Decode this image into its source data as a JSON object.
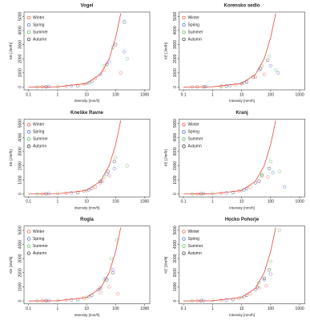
{
  "chart_data": [
    {
      "type": "scatter",
      "title": "Vogel",
      "x_label": "Intensity [mm/h]",
      "y_label": "KE [J/m²h]",
      "xscale": "log",
      "legend": "top-left",
      "xlim": [
        0.07,
        1500
      ],
      "ylim": [
        -200,
        5300
      ],
      "xticks": [
        0.1,
        1,
        10,
        100,
        1000
      ],
      "yticks": [
        0,
        1000,
        2000,
        3000,
        4000,
        5000
      ],
      "curve": {
        "color": "#e8493c",
        "x": [
          0.1,
          1,
          10,
          30,
          60,
          100,
          150
        ],
        "y": [
          1,
          15,
          250,
          900,
          2000,
          3500,
          5200
        ]
      },
      "series": [
        {
          "name": "Winter",
          "color": "#e8493c",
          "x": [
            0.3,
            2,
            8,
            20,
            40,
            150
          ],
          "values": [
            20,
            50,
            200,
            600,
            1200,
            1000
          ]
        },
        {
          "name": "Spring",
          "color": "#3a5fcd",
          "x": [
            0.5,
            3,
            12,
            30,
            60,
            200
          ],
          "values": [
            30,
            80,
            300,
            900,
            1800,
            2500
          ]
        },
        {
          "name": "Summer",
          "color": "#4caf50",
          "x": [
            0.2,
            1,
            10,
            40,
            80,
            250
          ],
          "values": [
            10,
            40,
            250,
            1500,
            2800,
            2000
          ]
        },
        {
          "name": "Autumn",
          "color": "#222222",
          "x": [
            0.4,
            5,
            15,
            50,
            100,
            200
          ],
          "values": [
            20,
            100,
            400,
            1600,
            3000,
            4600
          ]
        }
      ]
    },
    {
      "type": "scatter",
      "title": "Korensko sedlo",
      "x_label": "Intensity [mm/h]",
      "y_label": "KE [J/m²h]",
      "xscale": "log",
      "legend": "top-left",
      "xlim": [
        0.07,
        1500
      ],
      "ylim": [
        -200,
        5300
      ],
      "xticks": [
        0.1,
        1,
        10,
        100,
        1000
      ],
      "yticks": [
        0,
        1000,
        2000,
        3000,
        4000,
        5000
      ],
      "curve": {
        "color": "#e8493c",
        "x": [
          0.1,
          1,
          10,
          30,
          60,
          100,
          150
        ],
        "y": [
          1,
          15,
          250,
          900,
          2000,
          3500,
          5200
        ]
      },
      "series": [
        {
          "name": "Winter",
          "color": "#e8493c",
          "x": [
            0.3,
            2,
            6,
            15,
            30,
            60
          ],
          "values": [
            20,
            40,
            150,
            400,
            700,
            900
          ]
        },
        {
          "name": "Spring",
          "color": "#3a5fcd",
          "x": [
            0.6,
            4,
            15,
            40,
            100,
            180
          ],
          "values": [
            30,
            90,
            350,
            1200,
            1500,
            1000
          ]
        },
        {
          "name": "Summer",
          "color": "#4caf50",
          "x": [
            0.2,
            2,
            12,
            50,
            90,
            150
          ],
          "values": [
            10,
            60,
            300,
            1500,
            2200,
            1200
          ]
        },
        {
          "name": "Autumn",
          "color": "#222222",
          "x": [
            0.5,
            3,
            10,
            25,
            45,
            80
          ],
          "values": [
            20,
            70,
            250,
            700,
            1300,
            1900
          ]
        }
      ]
    },
    {
      "type": "scatter",
      "title": "Kneške Ravne",
      "x_label": "Intensity [mm/h]",
      "y_label": "KE [J/m²h]",
      "xscale": "log",
      "legend": "top-left",
      "xlim": [
        0.07,
        1500
      ],
      "ylim": [
        -200,
        5300
      ],
      "xticks": [
        0.1,
        1,
        10,
        100,
        1000
      ],
      "yticks": [
        0,
        1000,
        2000,
        3000,
        4000,
        5000
      ],
      "curve": {
        "color": "#e8493c",
        "x": [
          0.1,
          1,
          10,
          30,
          60,
          100,
          150
        ],
        "y": [
          1,
          15,
          250,
          900,
          2000,
          3500,
          5200
        ]
      },
      "series": [
        {
          "name": "Winter",
          "color": "#e8493c",
          "x": [
            0.3,
            2,
            8,
            20,
            35,
            60
          ],
          "values": [
            20,
            50,
            200,
            500,
            900,
            1300
          ]
        },
        {
          "name": "Spring",
          "color": "#3a5fcd",
          "x": [
            0.5,
            3,
            12,
            30,
            50,
            90
          ],
          "values": [
            30,
            80,
            300,
            800,
            1400,
            1800
          ]
        },
        {
          "name": "Summer",
          "color": "#4caf50",
          "x": [
            0.2,
            1,
            10,
            40,
            100,
            250
          ],
          "values": [
            10,
            40,
            250,
            1200,
            2600,
            2000
          ]
        },
        {
          "name": "Autumn",
          "color": "#222222",
          "x": [
            0.4,
            5,
            15,
            30,
            55,
            90
          ],
          "values": [
            20,
            100,
            400,
            900,
            1600,
            2300
          ]
        }
      ]
    },
    {
      "type": "scatter",
      "title": "Kranj",
      "x_label": "Intensity [mm/h]",
      "y_label": "KE [J/m²h]",
      "xscale": "log",
      "legend": "top-left",
      "xlim": [
        0.07,
        1500
      ],
      "ylim": [
        -200,
        5300
      ],
      "xticks": [
        0.1,
        1,
        10,
        100,
        1000
      ],
      "yticks": [
        0,
        1000,
        2000,
        3000,
        4000,
        5000
      ],
      "curve": {
        "color": "#e8493c",
        "x": [
          0.1,
          1,
          10,
          30,
          60,
          100,
          150
        ],
        "y": [
          1,
          15,
          250,
          900,
          2000,
          3500,
          5200
        ]
      },
      "series": [
        {
          "name": "Winter",
          "color": "#e8493c",
          "x": [
            0.3,
            2,
            8,
            20,
            40,
            80
          ],
          "values": [
            20,
            50,
            200,
            500,
            900,
            1200
          ]
        },
        {
          "name": "Spring",
          "color": "#3a5fcd",
          "x": [
            0.5,
            3,
            12,
            40,
            120,
            300
          ],
          "values": [
            30,
            80,
            300,
            900,
            1500,
            500
          ]
        },
        {
          "name": "Summer",
          "color": "#4caf50",
          "x": [
            0.2,
            1,
            10,
            50,
            100,
            200
          ],
          "values": [
            10,
            40,
            250,
            1400,
            2300,
            1600
          ]
        },
        {
          "name": "Autumn",
          "color": "#222222",
          "x": [
            0.4,
            5,
            15,
            30,
            50,
            90
          ],
          "values": [
            20,
            100,
            400,
            800,
            1300,
            1800
          ]
        }
      ]
    },
    {
      "type": "scatter",
      "title": "Rogla",
      "x_label": "Intensity [mm/h]",
      "y_label": "KE [J/m²h]",
      "xscale": "log",
      "legend": "top-left",
      "xlim": [
        0.07,
        1500
      ],
      "ylim": [
        -200,
        5300
      ],
      "xticks": [
        0.1,
        1,
        10,
        100,
        1000
      ],
      "yticks": [
        0,
        1000,
        2000,
        3000,
        4000,
        5000
      ],
      "curve": {
        "color": "#e8493c",
        "x": [
          0.1,
          1,
          10,
          30,
          60,
          100,
          150
        ],
        "y": [
          1,
          15,
          250,
          900,
          2000,
          3500,
          5200
        ]
      },
      "series": [
        {
          "name": "Winter",
          "color": "#e8493c",
          "x": [
            0.3,
            2,
            8,
            30,
            60,
            120
          ],
          "values": [
            20,
            50,
            200,
            600,
            1000,
            500
          ]
        },
        {
          "name": "Spring",
          "color": "#3a5fcd",
          "x": [
            0.5,
            3,
            12,
            25,
            45,
            80
          ],
          "values": [
            30,
            80,
            300,
            800,
            1600,
            2200
          ]
        },
        {
          "name": "Summer",
          "color": "#4caf50",
          "x": [
            0.2,
            1,
            10,
            40,
            70,
            110
          ],
          "values": [
            10,
            40,
            250,
            1500,
            3000,
            4300
          ]
        },
        {
          "name": "Autumn",
          "color": "#222222",
          "x": [
            0.4,
            5,
            15,
            30,
            50,
            80
          ],
          "values": [
            20,
            100,
            400,
            900,
            1500,
            2000
          ]
        }
      ]
    },
    {
      "type": "scatter",
      "title": "Hocko Pohorje",
      "x_label": "Intensity [mm/h]",
      "y_label": "KE [J/m²h]",
      "xscale": "log",
      "legend": "top-left",
      "xlim": [
        0.07,
        1500
      ],
      "ylim": [
        -200,
        5300
      ],
      "xticks": [
        0.1,
        1,
        10,
        100,
        1000
      ],
      "yticks": [
        0,
        1000,
        2000,
        3000,
        4000,
        5000
      ],
      "curve": {
        "color": "#e8493c",
        "x": [
          0.1,
          1,
          10,
          30,
          60,
          100,
          150
        ],
        "y": [
          1,
          15,
          250,
          900,
          2000,
          3500,
          5200
        ]
      },
      "series": [
        {
          "name": "Winter",
          "color": "#e8493c",
          "x": [
            0.3,
            2,
            8,
            20,
            40,
            70
          ],
          "values": [
            20,
            50,
            200,
            500,
            900,
            1100
          ]
        },
        {
          "name": "Spring",
          "color": "#3a5fcd",
          "x": [
            0.5,
            3,
            12,
            30,
            60,
            100
          ],
          "values": [
            30,
            80,
            300,
            800,
            1500,
            1900
          ]
        },
        {
          "name": "Summer",
          "color": "#4caf50",
          "x": [
            0.2,
            1,
            10,
            40,
            100,
            200
          ],
          "values": [
            10,
            40,
            250,
            1300,
            2800,
            5000
          ]
        },
        {
          "name": "Autumn",
          "color": "#222222",
          "x": [
            0.4,
            5,
            15,
            35,
            60,
            90
          ],
          "values": [
            20,
            100,
            400,
            1000,
            1600,
            2200
          ]
        }
      ]
    }
  ]
}
